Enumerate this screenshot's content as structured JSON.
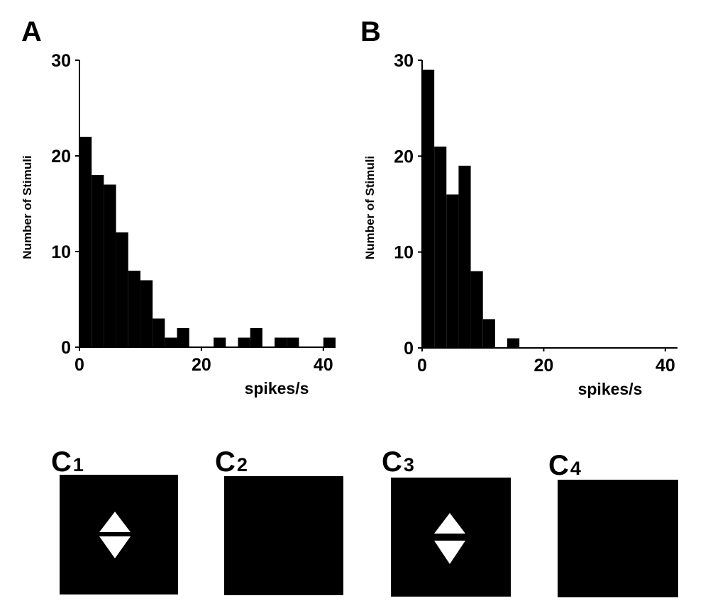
{
  "panels": {
    "A": {
      "label": "A"
    },
    "B": {
      "label": "B"
    }
  },
  "stimuli": [
    {
      "letter": "C",
      "index": "1",
      "shape": "double-diamond-gap"
    },
    {
      "letter": "C",
      "index": "2",
      "shape": "blank"
    },
    {
      "letter": "C",
      "index": "3",
      "shape": "double-diamond-overlap"
    },
    {
      "letter": "C",
      "index": "4",
      "shape": "blank"
    }
  ],
  "colors": {
    "bar": "#000000",
    "stimulus_bg": "#000000",
    "stimulus_fg": "#ffffff"
  },
  "chart_data": [
    {
      "panel": "A",
      "type": "bar",
      "xlabel": "spikes/s",
      "ylabel": "Number of Stimuli",
      "xlim": [
        0,
        42
      ],
      "ylim": [
        0,
        30
      ],
      "xticks": [
        0,
        20,
        40
      ],
      "yticks": [
        0,
        10,
        20,
        30
      ],
      "bin_width": 2,
      "bins": [
        0,
        2,
        4,
        6,
        8,
        10,
        12,
        14,
        16,
        18,
        20,
        22,
        24,
        26,
        28,
        30,
        32,
        34,
        36,
        38,
        40
      ],
      "values": [
        22,
        18,
        17,
        12,
        8,
        7,
        3,
        1,
        2,
        0,
        0,
        1,
        0,
        1,
        2,
        0,
        1,
        1,
        0,
        0,
        1
      ]
    },
    {
      "panel": "B",
      "type": "bar",
      "xlabel": "spikes/s",
      "ylabel": "Number of Stimuli",
      "xlim": [
        0,
        42
      ],
      "ylim": [
        0,
        30
      ],
      "xticks": [
        0,
        20,
        40
      ],
      "yticks": [
        0,
        10,
        20,
        30
      ],
      "bin_width": 2,
      "bins": [
        0,
        2,
        4,
        6,
        8,
        10,
        12,
        14
      ],
      "values": [
        29,
        21,
        16,
        19,
        8,
        3,
        0,
        1
      ]
    }
  ]
}
